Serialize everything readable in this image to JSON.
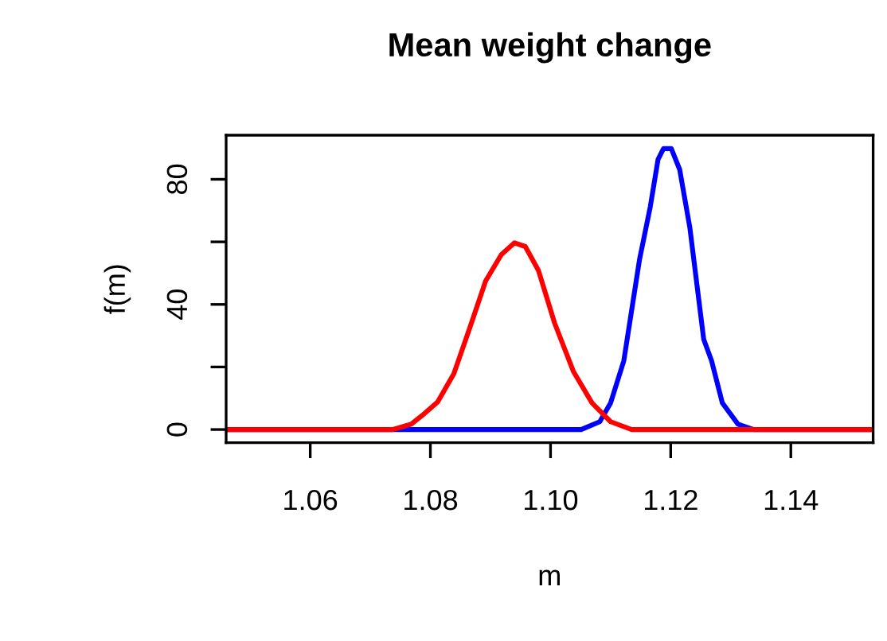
{
  "chart_data": {
    "type": "line",
    "title": "Mean weight change",
    "xlabel": "m",
    "ylabel": "f(m)",
    "xlim": [
      1.046,
      1.1537
    ],
    "ylim": [
      -4.2,
      94.1
    ],
    "xticks": [
      {
        "value": 1.06,
        "label": "1.06"
      },
      {
        "value": 1.08,
        "label": "1.08"
      },
      {
        "value": 1.1,
        "label": "1.10"
      },
      {
        "value": 1.12,
        "label": "1.12"
      },
      {
        "value": 1.14,
        "label": "1.14"
      }
    ],
    "yticks": [
      0,
      {
        "value": 20,
        "label": null
      },
      40,
      {
        "value": 60,
        "label": null
      },
      80
    ],
    "grid": false,
    "legend": false,
    "marker": "none",
    "line_style": "solid",
    "series": [
      {
        "color": "#0000ff",
        "x": [
          1.046,
          1.1051,
          1.1082,
          1.11,
          1.1122,
          1.1148,
          1.1166,
          1.1179,
          1.1188,
          1.1201,
          1.1215,
          1.1232,
          1.1255,
          1.1268,
          1.1286,
          1.1312,
          1.1338,
          1.1537
        ],
        "values": [
          0,
          0,
          2.5,
          8.5,
          22,
          54.2,
          71.2,
          86.4,
          89.8,
          89.8,
          83.1,
          64.4,
          28.8,
          22,
          8.5,
          1.7,
          0,
          0
        ]
      },
      {
        "color": "#ff0000",
        "x": [
          1.046,
          1.0737,
          1.0768,
          1.079,
          1.0812,
          1.0839,
          1.0865,
          1.0892,
          1.0918,
          1.094,
          1.0958,
          1.098,
          1.1007,
          1.1038,
          1.1069,
          1.11,
          1.1135,
          1.1537
        ],
        "values": [
          0,
          0,
          1.7,
          5.1,
          8.8,
          17.8,
          32.2,
          47.5,
          55.9,
          59.7,
          58.5,
          50.8,
          33.9,
          18.6,
          8.5,
          2.5,
          0,
          0
        ]
      }
    ]
  }
}
